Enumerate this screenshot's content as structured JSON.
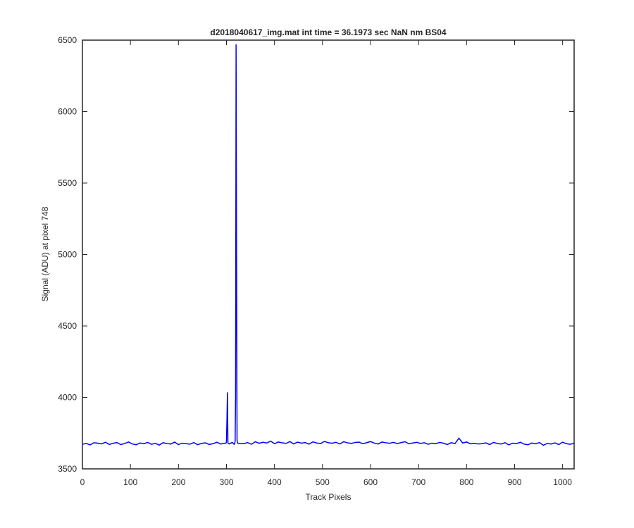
{
  "chart_data": {
    "type": "line",
    "title": "d2018040617_img.mat int time = 36.1973 sec  NaN nm BS04",
    "xlabel": "Track Pixels",
    "ylabel": "Signal (ADU) at pixel 748",
    "xlim": [
      0,
      1024
    ],
    "ylim": [
      3500,
      6500
    ],
    "xticks": [
      0,
      100,
      200,
      300,
      400,
      500,
      600,
      700,
      800,
      900,
      1000
    ],
    "yticks": [
      3500,
      4000,
      4500,
      5000,
      5500,
      6000,
      6500
    ],
    "grid": false,
    "series": [
      {
        "color": "#0000ff",
        "x": [
          0,
          8,
          16,
          24,
          32,
          40,
          48,
          56,
          64,
          72,
          80,
          88,
          96,
          104,
          112,
          120,
          128,
          136,
          144,
          152,
          160,
          168,
          176,
          184,
          192,
          200,
          208,
          216,
          224,
          232,
          240,
          248,
          256,
          264,
          272,
          280,
          288,
          296,
          299,
          300,
          301,
          302,
          303,
          306,
          312,
          316,
          318,
          319,
          320,
          321,
          322,
          323,
          328,
          336,
          344,
          352,
          360,
          368,
          376,
          384,
          392,
          400,
          408,
          416,
          424,
          432,
          440,
          448,
          456,
          464,
          472,
          480,
          488,
          496,
          504,
          512,
          520,
          528,
          536,
          544,
          552,
          560,
          568,
          576,
          584,
          592,
          600,
          608,
          616,
          624,
          632,
          640,
          648,
          656,
          664,
          672,
          680,
          688,
          696,
          704,
          712,
          720,
          728,
          736,
          744,
          752,
          760,
          768,
          776,
          784,
          792,
          800,
          808,
          816,
          824,
          832,
          840,
          848,
          856,
          864,
          872,
          880,
          888,
          896,
          904,
          912,
          920,
          928,
          936,
          944,
          952,
          960,
          968,
          976,
          984,
          992,
          1000,
          1008,
          1016,
          1024
        ],
        "values": [
          3672,
          3678,
          3668,
          3683,
          3680,
          3675,
          3686,
          3671,
          3679,
          3684,
          3670,
          3677,
          3688,
          3674,
          3669,
          3681,
          3676,
          3685,
          3672,
          3679,
          3666,
          3683,
          3677,
          3674,
          3687,
          3670,
          3680,
          3676,
          3673,
          3684,
          3669,
          3678,
          3682,
          3671,
          3676,
          3686,
          3674,
          3679,
          3680,
          3690,
          3840,
          4035,
          3680,
          3675,
          3685,
          3672,
          3690,
          4000,
          6470,
          4940,
          3700,
          3680,
          3678,
          3676,
          3684,
          3672,
          3690,
          3679,
          3686,
          3681,
          3694,
          3676,
          3688,
          3682,
          3678,
          3691,
          3675,
          3687,
          3680,
          3684,
          3673,
          3689,
          3681,
          3677,
          3692,
          3683,
          3679,
          3686,
          3674,
          3690,
          3682,
          3678,
          3685,
          3687,
          3676,
          3683,
          3691,
          3680,
          3674,
          3688,
          3682,
          3679,
          3685,
          3677,
          3684,
          3690,
          3675,
          3681,
          3686,
          3678,
          3683,
          3672,
          3680,
          3676,
          3685,
          3679,
          3670,
          3683,
          3677,
          3715,
          3681,
          3688,
          3675,
          3679,
          3674,
          3676,
          3682,
          3670,
          3685,
          3678,
          3674,
          3683,
          3668,
          3680,
          3677,
          3686,
          3673,
          3669,
          3681,
          3676,
          3684,
          3665,
          3678,
          3674,
          3682,
          3670,
          3687,
          3676,
          3672,
          3680
        ]
      }
    ]
  }
}
